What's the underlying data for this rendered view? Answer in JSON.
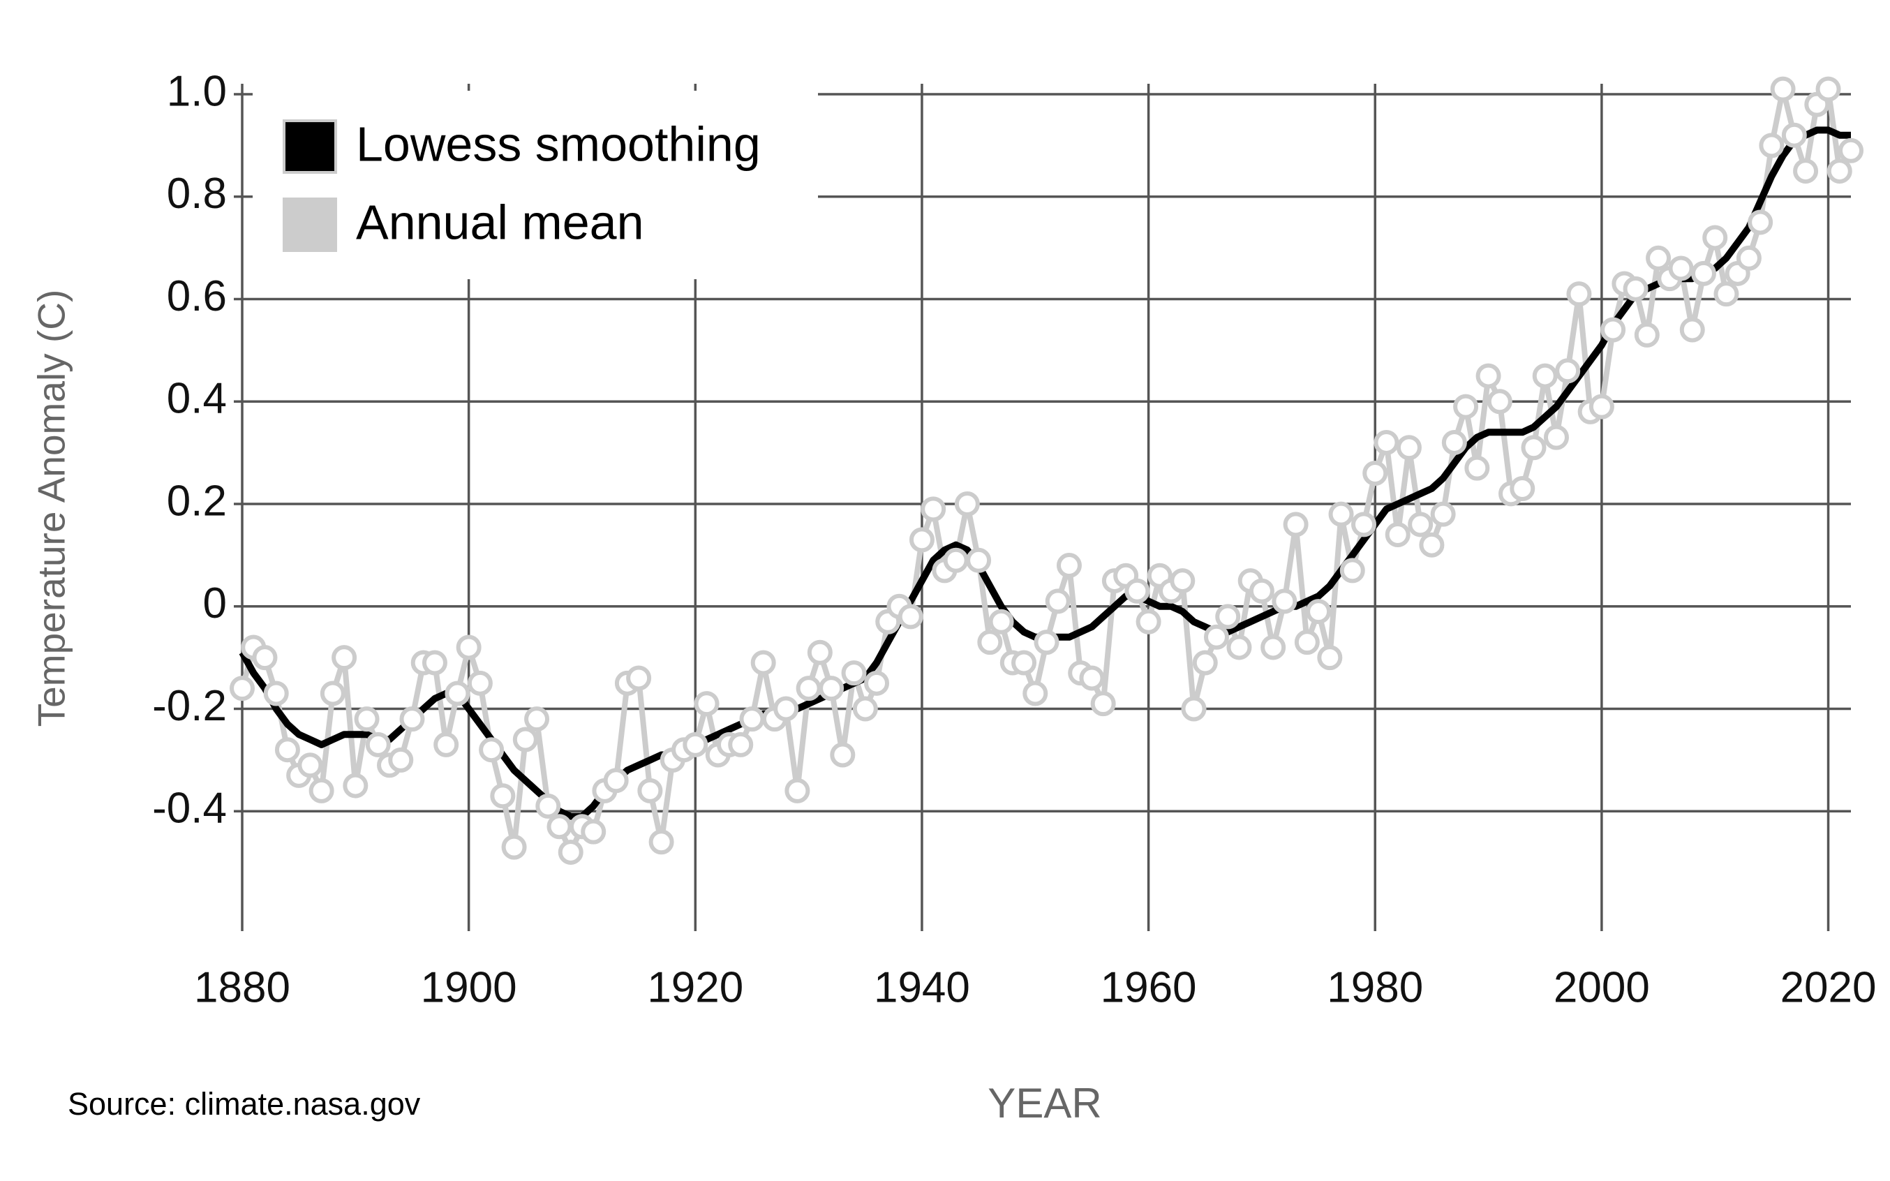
{
  "chart_data": {
    "type": "line",
    "x_label": "YEAR",
    "y_label": "Temperature Anomaly (C)",
    "source": "Source: climate.nasa.gov",
    "x": [
      1880,
      1881,
      1882,
      1883,
      1884,
      1885,
      1886,
      1887,
      1888,
      1889,
      1890,
      1891,
      1892,
      1893,
      1894,
      1895,
      1896,
      1897,
      1898,
      1899,
      1900,
      1901,
      1902,
      1903,
      1904,
      1905,
      1906,
      1907,
      1908,
      1909,
      1910,
      1911,
      1912,
      1913,
      1914,
      1915,
      1916,
      1917,
      1918,
      1919,
      1920,
      1921,
      1922,
      1923,
      1924,
      1925,
      1926,
      1927,
      1928,
      1929,
      1930,
      1931,
      1932,
      1933,
      1934,
      1935,
      1936,
      1937,
      1938,
      1939,
      1940,
      1941,
      1942,
      1943,
      1944,
      1945,
      1946,
      1947,
      1948,
      1949,
      1950,
      1951,
      1952,
      1953,
      1954,
      1955,
      1956,
      1957,
      1958,
      1959,
      1960,
      1961,
      1962,
      1963,
      1964,
      1965,
      1966,
      1967,
      1968,
      1969,
      1970,
      1971,
      1972,
      1973,
      1974,
      1975,
      1976,
      1977,
      1978,
      1979,
      1980,
      1981,
      1982,
      1983,
      1984,
      1985,
      1986,
      1987,
      1988,
      1989,
      1990,
      1991,
      1992,
      1993,
      1994,
      1995,
      1996,
      1997,
      1998,
      1999,
      2000,
      2001,
      2002,
      2003,
      2004,
      2005,
      2006,
      2007,
      2008,
      2009,
      2010,
      2011,
      2012,
      2013,
      2014,
      2015,
      2016,
      2017,
      2018,
      2019,
      2020,
      2021,
      2022
    ],
    "series": [
      {
        "name": "Lowess smoothing",
        "color": "#000000",
        "values": [
          -0.09,
          -0.13,
          -0.16,
          -0.2,
          -0.23,
          -0.25,
          -0.26,
          -0.27,
          -0.26,
          -0.25,
          -0.25,
          -0.25,
          -0.26,
          -0.26,
          -0.24,
          -0.22,
          -0.2,
          -0.18,
          -0.17,
          -0.17,
          -0.2,
          -0.23,
          -0.26,
          -0.29,
          -0.32,
          -0.34,
          -0.36,
          -0.38,
          -0.4,
          -0.41,
          -0.41,
          -0.39,
          -0.36,
          -0.34,
          -0.32,
          -0.31,
          -0.3,
          -0.29,
          -0.29,
          -0.28,
          -0.27,
          -0.26,
          -0.25,
          -0.24,
          -0.23,
          -0.22,
          -0.21,
          -0.21,
          -0.21,
          -0.2,
          -0.19,
          -0.18,
          -0.17,
          -0.16,
          -0.15,
          -0.14,
          -0.11,
          -0.07,
          -0.03,
          0.01,
          0.05,
          0.09,
          0.11,
          0.12,
          0.11,
          0.08,
          0.04,
          0.0,
          -0.03,
          -0.05,
          -0.06,
          -0.06,
          -0.06,
          -0.06,
          -0.05,
          -0.04,
          -0.02,
          0.0,
          0.02,
          0.02,
          0.01,
          0.0,
          0.0,
          -0.01,
          -0.03,
          -0.04,
          -0.05,
          -0.05,
          -0.04,
          -0.03,
          -0.02,
          -0.01,
          0.0,
          0.0,
          0.01,
          0.02,
          0.04,
          0.07,
          0.1,
          0.13,
          0.16,
          0.19,
          0.2,
          0.21,
          0.22,
          0.23,
          0.25,
          0.28,
          0.31,
          0.33,
          0.34,
          0.34,
          0.34,
          0.34,
          0.35,
          0.37,
          0.39,
          0.42,
          0.45,
          0.48,
          0.51,
          0.55,
          0.58,
          0.61,
          0.62,
          0.63,
          0.64,
          0.64,
          0.64,
          0.65,
          0.66,
          0.68,
          0.71,
          0.74,
          0.79,
          0.84,
          0.88,
          0.91,
          0.92,
          0.93,
          0.93,
          0.92,
          0.92
        ]
      },
      {
        "name": "Annual mean",
        "color": "#cccccc",
        "values": [
          -0.16,
          -0.08,
          -0.1,
          -0.17,
          -0.28,
          -0.33,
          -0.31,
          -0.36,
          -0.17,
          -0.1,
          -0.35,
          -0.22,
          -0.27,
          -0.31,
          -0.3,
          -0.22,
          -0.11,
          -0.11,
          -0.27,
          -0.17,
          -0.08,
          -0.15,
          -0.28,
          -0.37,
          -0.47,
          -0.26,
          -0.22,
          -0.39,
          -0.43,
          -0.48,
          -0.43,
          -0.44,
          -0.36,
          -0.34,
          -0.15,
          -0.14,
          -0.36,
          -0.46,
          -0.3,
          -0.28,
          -0.27,
          -0.19,
          -0.29,
          -0.27,
          -0.27,
          -0.22,
          -0.11,
          -0.22,
          -0.2,
          -0.36,
          -0.16,
          -0.09,
          -0.16,
          -0.29,
          -0.13,
          -0.2,
          -0.15,
          -0.03,
          0.0,
          -0.02,
          0.13,
          0.19,
          0.07,
          0.09,
          0.2,
          0.09,
          -0.07,
          -0.03,
          -0.11,
          -0.11,
          -0.17,
          -0.07,
          0.01,
          0.08,
          -0.13,
          -0.14,
          -0.19,
          0.05,
          0.06,
          0.03,
          -0.03,
          0.06,
          0.03,
          0.05,
          -0.2,
          -0.11,
          -0.06,
          -0.02,
          -0.08,
          0.05,
          0.03,
          -0.08,
          0.01,
          0.16,
          -0.07,
          -0.01,
          -0.1,
          0.18,
          0.07,
          0.16,
          0.26,
          0.32,
          0.14,
          0.31,
          0.16,
          0.12,
          0.18,
          0.32,
          0.39,
          0.27,
          0.45,
          0.4,
          0.22,
          0.23,
          0.31,
          0.45,
          0.33,
          0.46,
          0.61,
          0.38,
          0.39,
          0.54,
          0.63,
          0.62,
          0.53,
          0.68,
          0.64,
          0.66,
          0.54,
          0.65,
          0.72,
          0.61,
          0.65,
          0.68,
          0.75,
          0.9,
          1.01,
          0.92,
          0.85,
          0.98,
          1.01,
          0.85,
          0.89
        ]
      }
    ],
    "xlim": [
      1880,
      2022
    ],
    "xticks": [
      1880,
      1900,
      1920,
      1940,
      1960,
      1980,
      2000,
      2020
    ],
    "ylim": [
      -0.6,
      1.0
    ],
    "yticks": [
      {
        "value": 1,
        "label": "1.0"
      },
      0.8,
      0.6,
      0.4,
      0.2,
      0,
      -0.2,
      -0.4
    ],
    "grid": true,
    "legend": "upper left"
  }
}
